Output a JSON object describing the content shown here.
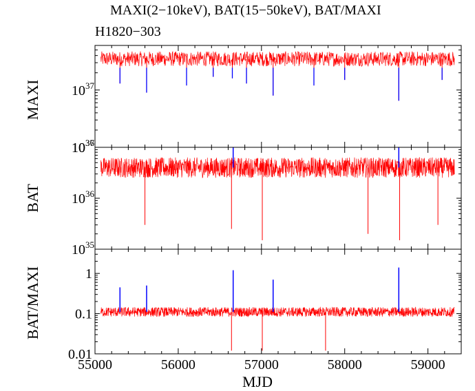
{
  "title": {
    "line1": "MAXI(2−10keV), BAT(15−50keV), BAT/MAXI",
    "line2": "H1820−303"
  },
  "colors": {
    "main": "#ff0000",
    "highlight": "#0000ff",
    "axis": "#000000"
  },
  "chart_data": [
    {
      "type": "line",
      "panel": "maxi",
      "ylabel": "MAXI",
      "yscale": "log",
      "ylim": [
        1e+36,
        6e+37
      ],
      "yticks": [
        {
          "value": 1e+36,
          "label": "10",
          "exp": "36"
        },
        {
          "value": 1e+37,
          "label": "10",
          "exp": "37"
        }
      ],
      "xlim": [
        55000,
        59400
      ],
      "typical_level": 3.5e+37,
      "dips": [
        {
          "mjd": 55300,
          "value": 1.3e+37
        },
        {
          "mjd": 55620,
          "value": 9e+36
        },
        {
          "mjd": 56100,
          "value": 1.2e+37
        },
        {
          "mjd": 56420,
          "value": 1.7e+37
        },
        {
          "mjd": 56650,
          "value": 1.6e+37
        },
        {
          "mjd": 56820,
          "value": 1.3e+37
        },
        {
          "mjd": 57140,
          "value": 8e+36
        },
        {
          "mjd": 57630,
          "value": 1.2e+37
        },
        {
          "mjd": 58000,
          "value": 1.5e+37
        },
        {
          "mjd": 58650,
          "value": 6.5e+36
        },
        {
          "mjd": 59170,
          "value": 1.5e+37
        }
      ]
    },
    {
      "type": "line",
      "panel": "bat",
      "ylabel": "BAT",
      "yscale": "log",
      "ylim": [
        1e+35,
        1e+37
      ],
      "yticks": [
        {
          "value": 1e+35,
          "label": "10",
          "exp": "35"
        },
        {
          "value": 1e+36,
          "label": "10",
          "exp": "36"
        },
        {
          "value": 1e+37,
          "label": "10",
          "exp": "37"
        }
      ],
      "xlim": [
        55000,
        59400
      ],
      "typical_level": 4e+36,
      "spikes": [
        {
          "mjd": 55600,
          "value": 3e+35
        },
        {
          "mjd": 56640,
          "value": 2.5e+35
        },
        {
          "mjd": 57010,
          "value": 1.5e+35
        },
        {
          "mjd": 58280,
          "value": 2e+35
        },
        {
          "mjd": 58660,
          "value": 1.5e+35
        },
        {
          "mjd": 59120,
          "value": 3e+35
        }
      ],
      "peaks": [
        {
          "mjd": 56660,
          "value": 1e+37
        },
        {
          "mjd": 58650,
          "value": 1e+37
        }
      ]
    },
    {
      "type": "line",
      "panel": "ratio",
      "ylabel": "BAT/MAXI",
      "xlabel": "MJD",
      "yscale": "log",
      "ylim": [
        0.01,
        4
      ],
      "yticks": [
        {
          "value": 0.01,
          "label": "0.01"
        },
        {
          "value": 0.1,
          "label": "0.1"
        },
        {
          "value": 1,
          "label": "1"
        }
      ],
      "xlim": [
        55000,
        59400
      ],
      "xticks": [
        55000,
        56000,
        57000,
        58000,
        59000
      ],
      "typical_level": 0.11,
      "peaks": [
        {
          "mjd": 55300,
          "value": 0.45
        },
        {
          "mjd": 55620,
          "value": 0.5
        },
        {
          "mjd": 56660,
          "value": 1.2
        },
        {
          "mjd": 57140,
          "value": 0.7
        },
        {
          "mjd": 58650,
          "value": 1.4
        }
      ],
      "spikes": [
        {
          "mjd": 56640,
          "value": 0.012
        },
        {
          "mjd": 57010,
          "value": 0.012
        },
        {
          "mjd": 57770,
          "value": 0.012
        }
      ]
    }
  ]
}
